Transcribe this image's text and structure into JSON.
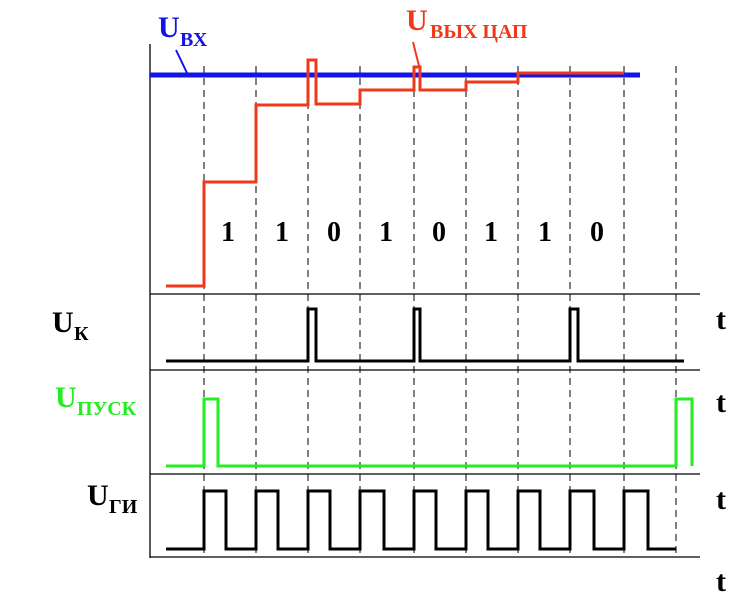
{
  "labels": {
    "u_in_main": "U",
    "u_in_sub": "ВХ",
    "u_dac_main": "U",
    "u_dac_sub": "ВЫХ ЦАП",
    "u_k_main": "U",
    "u_k_sub": "К",
    "u_start_main": "U",
    "u_start_sub": "ПУСК",
    "u_gi_main": "U",
    "u_gi_sub": "ГИ",
    "t_axis": [
      "t",
      "t",
      "t",
      "t"
    ]
  },
  "bits": [
    "1",
    "1",
    "0",
    "1",
    "0",
    "1",
    "1",
    "0"
  ],
  "colors": {
    "u_in": "#1414e6",
    "u_dac": "#ee3a1a",
    "u_start": "#22ee22",
    "trace": "#000000",
    "axis": "#000000",
    "grid": "#000000"
  }
}
